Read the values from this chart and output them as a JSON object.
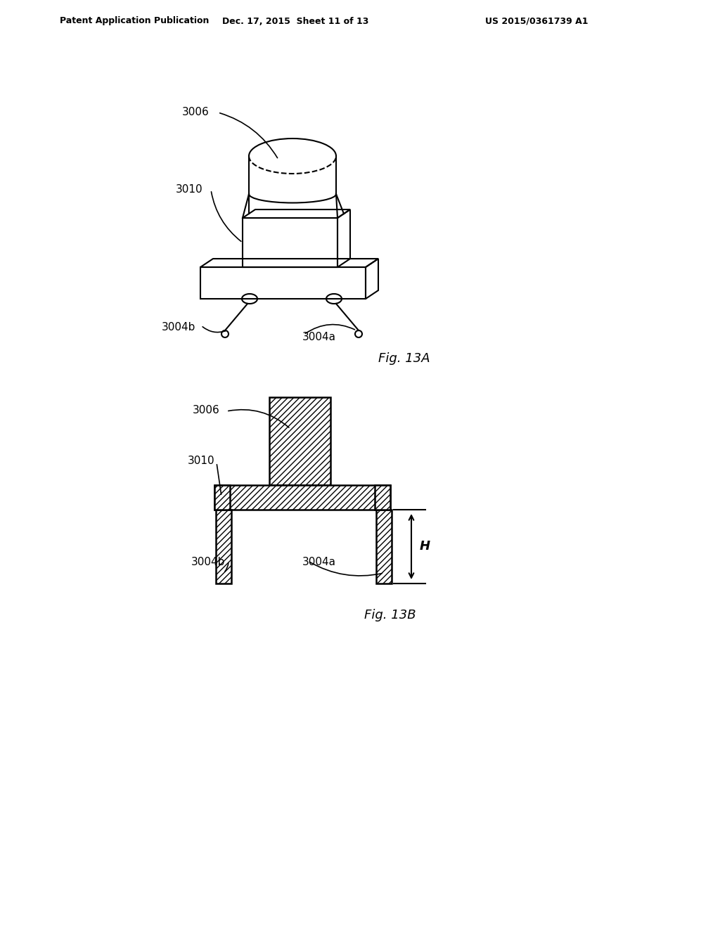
{
  "bg_color": "#ffffff",
  "header_left": "Patent Application Publication",
  "header_mid": "Dec. 17, 2015  Sheet 11 of 13",
  "header_right": "US 2015/0361739 A1",
  "fig13a_caption": "Fig. 13A",
  "fig13b_caption": "Fig. 13B",
  "hatch_pattern": "////",
  "line_color": "#000000",
  "label_3006_13a": "3006",
  "label_3010_13a": "3010",
  "label_3004b_13a": "3004b",
  "label_3004a_13a": "3004a",
  "label_3006_13b": "3006",
  "label_3010_13b": "3010",
  "label_3004b_13b": "3004b",
  "label_3004a_13b": "3004a",
  "label_H": "H"
}
